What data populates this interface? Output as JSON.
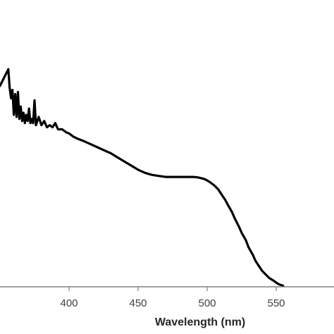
{
  "chart_data": {
    "type": "line",
    "title": "",
    "xlabel": "Wavelength (nm)",
    "ylabel": "",
    "xlim": [
      350,
      555
    ],
    "ylim": [
      0,
      1.18
    ],
    "grid": false,
    "legend": "none",
    "x_ticks": [
      "400",
      "450",
      "500",
      "550"
    ],
    "line_color": "#000000",
    "axis_color": "#808080",
    "series": [
      {
        "x": [
          350,
          353,
          356,
          357,
          358,
          359,
          360,
          361,
          362,
          363,
          364,
          365,
          366,
          367,
          368,
          369,
          370,
          371,
          372,
          373,
          374,
          375,
          376,
          378,
          380,
          382,
          384,
          386,
          388,
          390,
          392,
          395,
          398,
          400,
          403,
          406,
          410,
          415,
          420,
          425,
          430,
          435,
          440,
          445,
          450,
          455,
          460,
          465,
          470,
          475,
          480,
          485,
          490,
          493,
          495,
          498,
          500,
          502,
          505,
          508,
          510,
          513,
          515,
          518,
          520,
          523,
          525,
          528,
          530,
          533,
          535,
          538,
          540,
          543,
          545,
          548,
          550,
          552,
          555
        ],
        "y": [
          0.97,
          1.01,
          1.05,
          0.96,
          0.91,
          0.95,
          0.83,
          0.93,
          0.82,
          0.94,
          0.81,
          0.87,
          0.8,
          0.84,
          0.79,
          0.83,
          0.8,
          0.86,
          0.79,
          0.81,
          0.79,
          0.9,
          0.78,
          0.82,
          0.78,
          0.8,
          0.77,
          0.78,
          0.77,
          0.79,
          0.76,
          0.76,
          0.745,
          0.74,
          0.725,
          0.715,
          0.705,
          0.69,
          0.675,
          0.66,
          0.645,
          0.625,
          0.605,
          0.585,
          0.565,
          0.55,
          0.54,
          0.535,
          0.53,
          0.53,
          0.53,
          0.53,
          0.53,
          0.528,
          0.525,
          0.52,
          0.513,
          0.505,
          0.49,
          0.47,
          0.45,
          0.42,
          0.395,
          0.36,
          0.33,
          0.29,
          0.26,
          0.225,
          0.19,
          0.155,
          0.125,
          0.095,
          0.075,
          0.055,
          0.042,
          0.03,
          0.02,
          0.012,
          0.005
        ]
      }
    ]
  }
}
